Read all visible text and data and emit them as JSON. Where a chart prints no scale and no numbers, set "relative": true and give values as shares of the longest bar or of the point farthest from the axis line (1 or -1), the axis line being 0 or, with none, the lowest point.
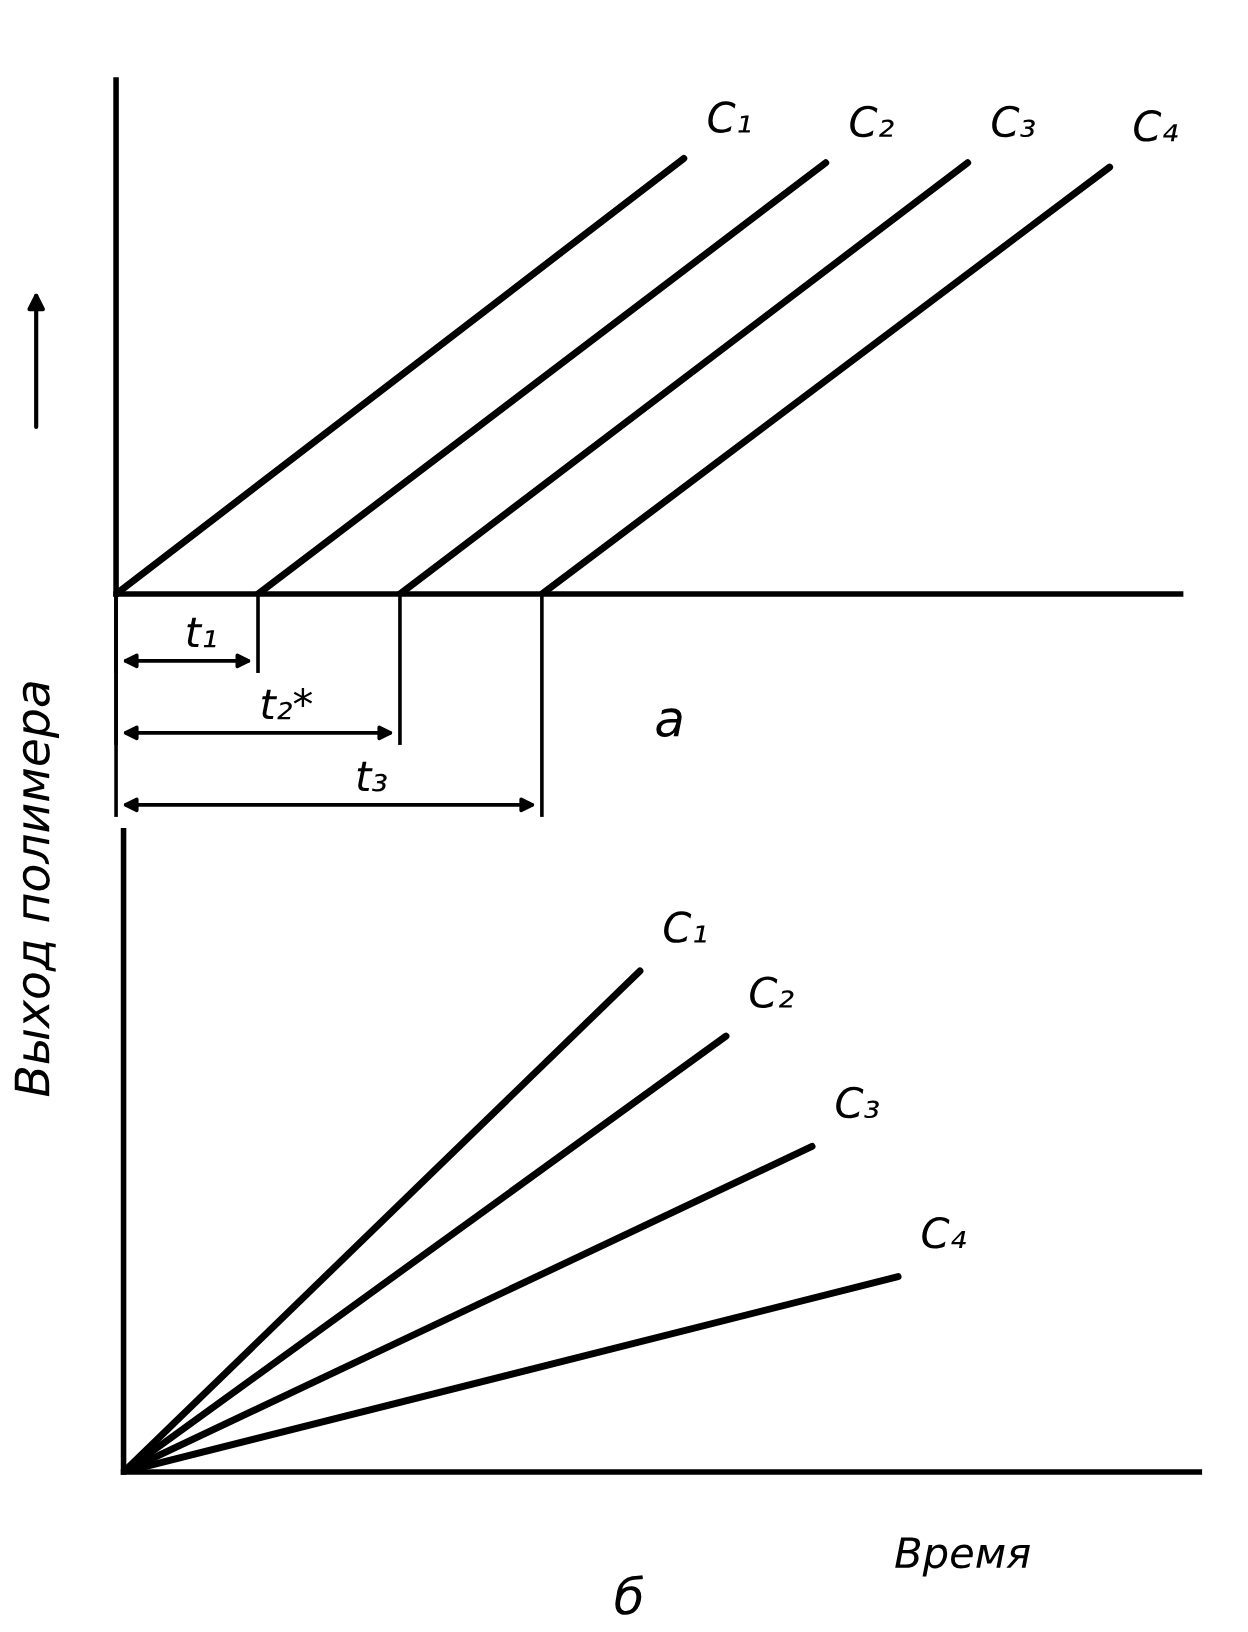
{
  "chart_data": [
    {
      "type": "line",
      "relative": true,
      "legend": false,
      "line_style": "solid",
      "marker": "none",
      "categories": [
        null,
        null,
        null,
        null,
        null,
        null,
        null,
        null,
        null,
        null,
        null,
        null,
        null,
        null,
        null,
        null
      ],
      "series": [
        {
          "name": "C₁",
          "color": "#000000",
          "values": [
            0,
            null,
            null,
            null,
            null,
            null,
            null,
            null,
            1,
            null,
            null,
            null,
            null,
            null,
            null,
            null
          ]
        },
        {
          "name": "C₂",
          "color": "#000000",
          "values": [
            null,
            null,
            0,
            null,
            null,
            null,
            null,
            null,
            null,
            null,
            0.99,
            null,
            null,
            null,
            null,
            null
          ]
        },
        {
          "name": "C₃",
          "color": "#000000",
          "values": [
            null,
            null,
            null,
            null,
            0,
            null,
            null,
            null,
            null,
            null,
            null,
            null,
            0.99,
            null,
            null,
            null
          ]
        },
        {
          "name": "C₄",
          "color": "#000000",
          "values": [
            null,
            null,
            null,
            null,
            null,
            null,
            0,
            null,
            null,
            null,
            null,
            null,
            null,
            null,
            0.98,
            null
          ]
        }
      ],
      "annotations": [
        "t₁",
        "t₂*",
        "t₃",
        "а"
      ]
    },
    {
      "type": "line",
      "relative": true,
      "legend": false,
      "line_style": "solid",
      "marker": "none",
      "xlabel": "Время",
      "ylabel": "Выход полимера",
      "categories": [
        null,
        null,
        null,
        null,
        null,
        null,
        null,
        null,
        null,
        null,
        null,
        null,
        null,
        null,
        null,
        null,
        null,
        null,
        null,
        null,
        null,
        null,
        null,
        null,
        null,
        null
      ],
      "series": [
        {
          "name": "C₁",
          "color": "#000000",
          "values": [
            0,
            null,
            null,
            null,
            null,
            null,
            null,
            null,
            null,
            null,
            null,
            null,
            1,
            null,
            null,
            null,
            null,
            null,
            null,
            null,
            null,
            null,
            null,
            null,
            null,
            null
          ]
        },
        {
          "name": "C₂",
          "color": "#000000",
          "values": [
            0,
            null,
            null,
            null,
            null,
            null,
            null,
            null,
            null,
            null,
            null,
            null,
            null,
            null,
            0.87,
            null,
            null,
            null,
            null,
            null,
            null,
            null,
            null,
            null,
            null,
            null
          ]
        },
        {
          "name": "C₃",
          "color": "#000000",
          "values": [
            0,
            null,
            null,
            null,
            null,
            null,
            null,
            null,
            null,
            null,
            null,
            null,
            null,
            null,
            null,
            null,
            0.65,
            null,
            null,
            null,
            null,
            null,
            null,
            null,
            null,
            null
          ]
        },
        {
          "name": "C₄",
          "color": "#000000",
          "values": [
            0,
            null,
            null,
            null,
            null,
            null,
            null,
            null,
            null,
            null,
            null,
            null,
            null,
            null,
            null,
            null,
            null,
            null,
            0.39,
            null,
            null,
            null,
            null,
            null,
            null,
            null
          ]
        }
      ],
      "annotations": [
        "б"
      ]
    }
  ]
}
